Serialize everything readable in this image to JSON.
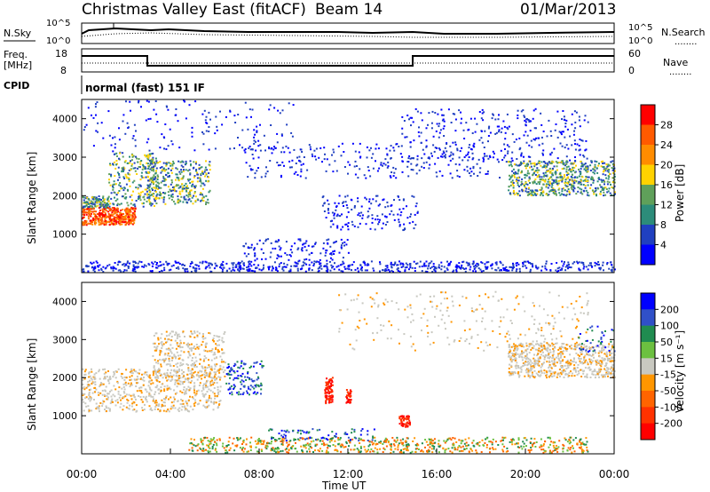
{
  "header": {
    "title": "Christmas Valley East (fitACF)",
    "beam": "Beam 14",
    "date": "01/Mar/2013"
  },
  "status_panels": {
    "nsky_label": "N.Sky",
    "nsearch_label": "N.Search",
    "noise_ticks": [
      "10^5",
      "10^0"
    ],
    "freq_label": "Freq.",
    "freq_unit": "[MHz]",
    "freq_ticks": [
      "18",
      "8"
    ],
    "nave_label": "Nave",
    "nave_ticks": [
      "60",
      "0"
    ],
    "cpid_label": "CPID",
    "cpid_text": "normal (fast) 151 IF",
    "legend_line": "........"
  },
  "chart_data": [
    {
      "type": "heatmap",
      "name": "power",
      "ylabel": "Slant Range [km]",
      "yticks": [
        "4000",
        "3000",
        "2000",
        "1000"
      ],
      "ylim": [
        0,
        4500
      ],
      "xlim": [
        0,
        24
      ],
      "colorbar": {
        "label": "Power [dB]",
        "ticks": [
          "28",
          "24",
          "20",
          "16",
          "12",
          "8",
          "4"
        ],
        "colors": [
          "#ff0000",
          "#ff5a00",
          "#ff8c00",
          "#ffd200",
          "#5fa05a",
          "#2c8c7a",
          "#2040c0",
          "#0000ff"
        ]
      },
      "features": [
        {
          "t_start": 0.0,
          "t_end": 3.0,
          "range": [
            1400,
            2100
          ],
          "level": "high"
        },
        {
          "t_start": 2.5,
          "t_end": 6.5,
          "range": [
            1800,
            3000
          ],
          "level": "medium"
        },
        {
          "t_start": 19.0,
          "t_end": 24.0,
          "range": [
            2000,
            3100
          ],
          "level": "medium"
        },
        {
          "t_start": 11.0,
          "t_end": 15.0,
          "range": [
            900,
            2500
          ],
          "level": "low"
        }
      ]
    },
    {
      "type": "heatmap",
      "name": "velocity",
      "xlabel": "Time UT",
      "ylabel": "Slant Range [km]",
      "yticks": [
        "4000",
        "3000",
        "2000",
        "1000"
      ],
      "ylim": [
        0,
        4500
      ],
      "xticks": [
        "00:00",
        "04:00",
        "08:00",
        "12:00",
        "16:00",
        "20:00",
        "00:00"
      ],
      "xlim": [
        0,
        24
      ],
      "colorbar": {
        "label": "Velocity [m s⁻¹]",
        "ticks": [
          "200",
          "100",
          "50",
          "15",
          "-15",
          "-50",
          "-100",
          "-200"
        ],
        "colors": [
          "#0000ff",
          "#3050c8",
          "#208c50",
          "#6cc040",
          "#c8c8c0",
          "#ff9600",
          "#ff6400",
          "#ff3200",
          "#ff0000"
        ]
      }
    }
  ]
}
